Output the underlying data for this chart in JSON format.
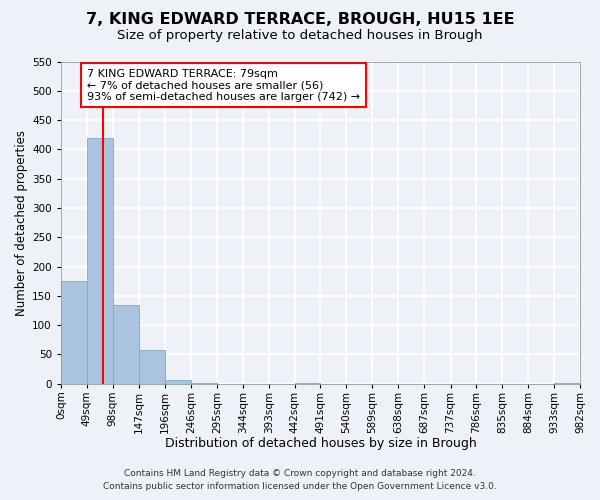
{
  "title": "7, KING EDWARD TERRACE, BROUGH, HU15 1EE",
  "subtitle": "Size of property relative to detached houses in Brough",
  "xlabel": "Distribution of detached houses by size in Brough",
  "ylabel": "Number of detached properties",
  "bin_edges": [
    0,
    49,
    98,
    147,
    196,
    246,
    295,
    344,
    393,
    442,
    491,
    540,
    589,
    638,
    687,
    737,
    786,
    835,
    884,
    933,
    982
  ],
  "bin_labels": [
    "0sqm",
    "49sqm",
    "98sqm",
    "147sqm",
    "196sqm",
    "246sqm",
    "295sqm",
    "344sqm",
    "393sqm",
    "442sqm",
    "491sqm",
    "540sqm",
    "589sqm",
    "638sqm",
    "687sqm",
    "737sqm",
    "786sqm",
    "835sqm",
    "884sqm",
    "933sqm",
    "982sqm"
  ],
  "counts": [
    175,
    420,
    135,
    57,
    7,
    1,
    0,
    0,
    0,
    1,
    0,
    0,
    0,
    0,
    0,
    0,
    0,
    0,
    0,
    1
  ],
  "bar_color": "#aac4e0",
  "bar_edge_color": "#7aaac8",
  "property_line_x": 79,
  "property_line_color": "red",
  "ylim": [
    0,
    550
  ],
  "yticks": [
    0,
    50,
    100,
    150,
    200,
    250,
    300,
    350,
    400,
    450,
    500,
    550
  ],
  "annotation_text": "7 KING EDWARD TERRACE: 79sqm\n← 7% of detached houses are smaller (56)\n93% of semi-detached houses are larger (742) →",
  "annotation_box_color": "white",
  "annotation_box_edge_color": "red",
  "footer_line1": "Contains HM Land Registry data © Crown copyright and database right 2024.",
  "footer_line2": "Contains public sector information licensed under the Open Government Licence v3.0.",
  "background_color": "#eef2f8",
  "grid_color": "white",
  "title_fontsize": 11.5,
  "subtitle_fontsize": 9.5,
  "xlabel_fontsize": 9,
  "ylabel_fontsize": 8.5,
  "tick_fontsize": 7.5,
  "annotation_fontsize": 8,
  "footer_fontsize": 6.5
}
